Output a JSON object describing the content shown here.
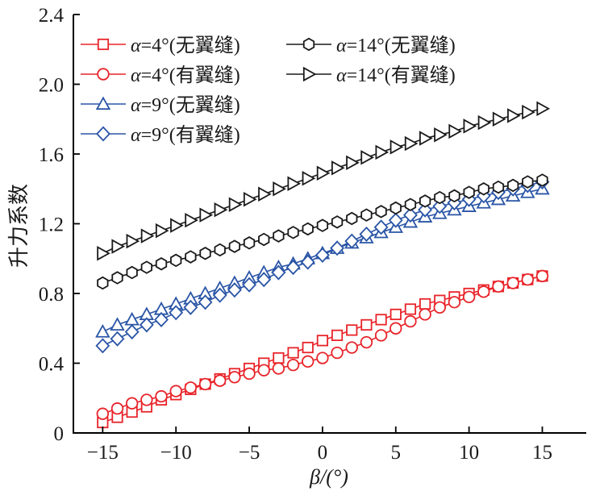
{
  "chart_data": {
    "type": "line",
    "xlabel": "β/(°)",
    "ylabel": "升力系数",
    "xlim": [
      -17,
      18
    ],
    "ylim": [
      0,
      2.4
    ],
    "xticks": [
      -15,
      -10,
      -5,
      0,
      5,
      10,
      15
    ],
    "xtick_labels": [
      "−15",
      "−10",
      "−5",
      "0",
      "5",
      "10",
      "15"
    ],
    "yticks": [
      0,
      0.4,
      0.8,
      1.2,
      1.6,
      2.0,
      2.4
    ],
    "ytick_labels": [
      "0",
      "0.4",
      "0.8",
      "1.2",
      "1.6",
      "2.0",
      "2.4"
    ],
    "grid": false,
    "legend_position": "top-left",
    "x": [
      -15,
      -14,
      -13,
      -12,
      -11,
      -10,
      -9,
      -8,
      -7,
      -6,
      -5,
      -4,
      -3,
      -2,
      -1,
      0,
      1,
      2,
      3,
      4,
      5,
      6,
      7,
      8,
      9,
      10,
      11,
      12,
      13,
      14,
      15
    ],
    "series": [
      {
        "name_prefix": "α",
        "name_rest": "=4°(无翼缝)",
        "color": "#e8242a",
        "marker": "square",
        "values": [
          0.06,
          0.09,
          0.12,
          0.15,
          0.19,
          0.22,
          0.25,
          0.28,
          0.31,
          0.34,
          0.37,
          0.4,
          0.43,
          0.46,
          0.49,
          0.53,
          0.56,
          0.59,
          0.62,
          0.65,
          0.68,
          0.71,
          0.74,
          0.76,
          0.78,
          0.8,
          0.82,
          0.84,
          0.86,
          0.88,
          0.9
        ]
      },
      {
        "name_prefix": "α",
        "name_rest": "=4°(有翼缝)",
        "color": "#e8242a",
        "marker": "circle",
        "values": [
          0.11,
          0.14,
          0.17,
          0.19,
          0.21,
          0.24,
          0.26,
          0.28,
          0.3,
          0.32,
          0.34,
          0.36,
          0.37,
          0.39,
          0.41,
          0.43,
          0.46,
          0.49,
          0.52,
          0.56,
          0.6,
          0.64,
          0.68,
          0.72,
          0.75,
          0.78,
          0.81,
          0.84,
          0.86,
          0.88,
          0.9
        ]
      },
      {
        "name_prefix": "α",
        "name_rest": "=9°(无翼缝)",
        "color": "#2a55a6",
        "marker": "triangle-up",
        "values": [
          0.58,
          0.62,
          0.65,
          0.68,
          0.71,
          0.74,
          0.77,
          0.8,
          0.83,
          0.86,
          0.89,
          0.92,
          0.95,
          0.97,
          1.0,
          1.03,
          1.06,
          1.09,
          1.12,
          1.15,
          1.18,
          1.21,
          1.24,
          1.26,
          1.28,
          1.3,
          1.32,
          1.34,
          1.36,
          1.38,
          1.4
        ]
      },
      {
        "name_prefix": "α",
        "name_rest": "=9°(有翼缝)",
        "color": "#2a55a6",
        "marker": "diamond",
        "values": [
          0.5,
          0.54,
          0.58,
          0.62,
          0.65,
          0.69,
          0.72,
          0.75,
          0.79,
          0.82,
          0.85,
          0.88,
          0.92,
          0.95,
          0.98,
          1.02,
          1.06,
          1.1,
          1.14,
          1.18,
          1.22,
          1.25,
          1.28,
          1.3,
          1.32,
          1.34,
          1.36,
          1.38,
          1.4,
          1.42,
          1.44
        ]
      },
      {
        "name_prefix": "α",
        "name_rest": "=14°(无翼缝)",
        "color": "#1a1a1a",
        "marker": "hexagon",
        "values": [
          0.86,
          0.89,
          0.92,
          0.95,
          0.97,
          0.99,
          1.01,
          1.03,
          1.05,
          1.07,
          1.09,
          1.11,
          1.13,
          1.15,
          1.17,
          1.19,
          1.21,
          1.23,
          1.25,
          1.27,
          1.29,
          1.31,
          1.33,
          1.35,
          1.36,
          1.38,
          1.4,
          1.41,
          1.42,
          1.44,
          1.45
        ]
      },
      {
        "name_prefix": "α",
        "name_rest": "=14°(有翼缝)",
        "color": "#1a1a1a",
        "marker": "triangle-right",
        "values": [
          1.03,
          1.07,
          1.1,
          1.13,
          1.16,
          1.19,
          1.22,
          1.25,
          1.28,
          1.31,
          1.34,
          1.37,
          1.4,
          1.43,
          1.46,
          1.49,
          1.52,
          1.55,
          1.58,
          1.61,
          1.64,
          1.66,
          1.69,
          1.71,
          1.73,
          1.76,
          1.78,
          1.8,
          1.82,
          1.84,
          1.86
        ]
      }
    ]
  }
}
